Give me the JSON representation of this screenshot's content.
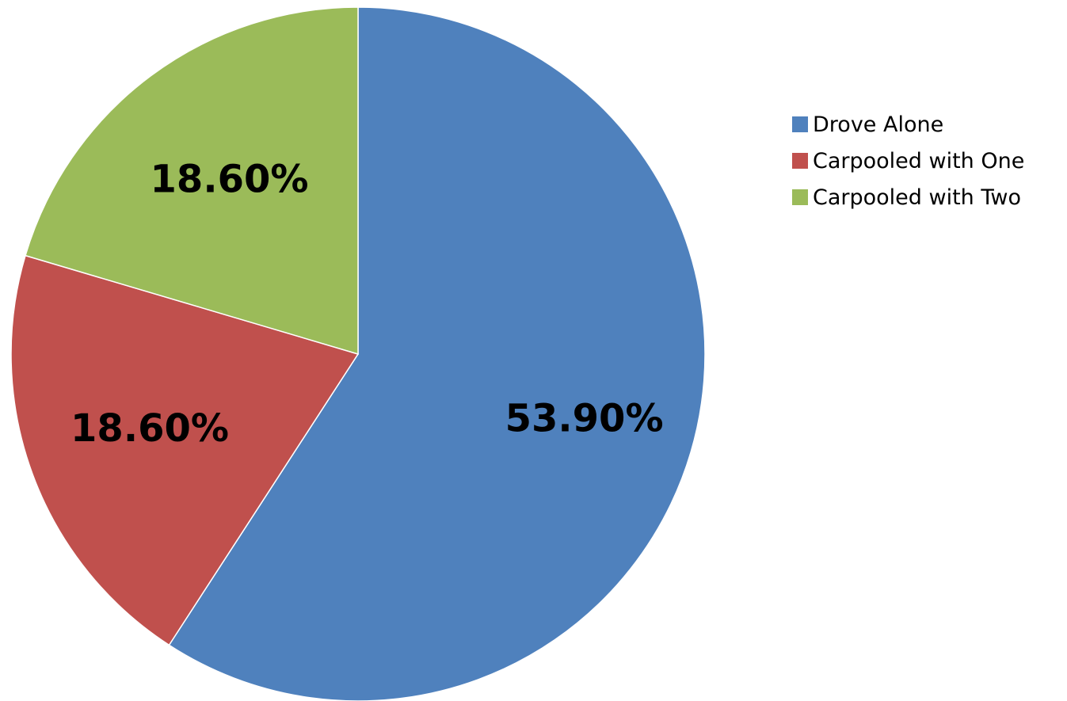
{
  "chart_data": {
    "type": "pie",
    "title": "",
    "categories": [
      "Drove Alone",
      "Carpooled with One",
      "Carpooled with Two"
    ],
    "values": [
      53.9,
      18.6,
      18.6
    ],
    "data_labels": [
      "53.90%",
      "18.60%",
      "18.60%"
    ],
    "colors": [
      "#4f81bd",
      "#c0504d",
      "#9bbb59"
    ],
    "legend_position": "right",
    "start_angle": "12 o'clock",
    "direction": "clockwise"
  }
}
